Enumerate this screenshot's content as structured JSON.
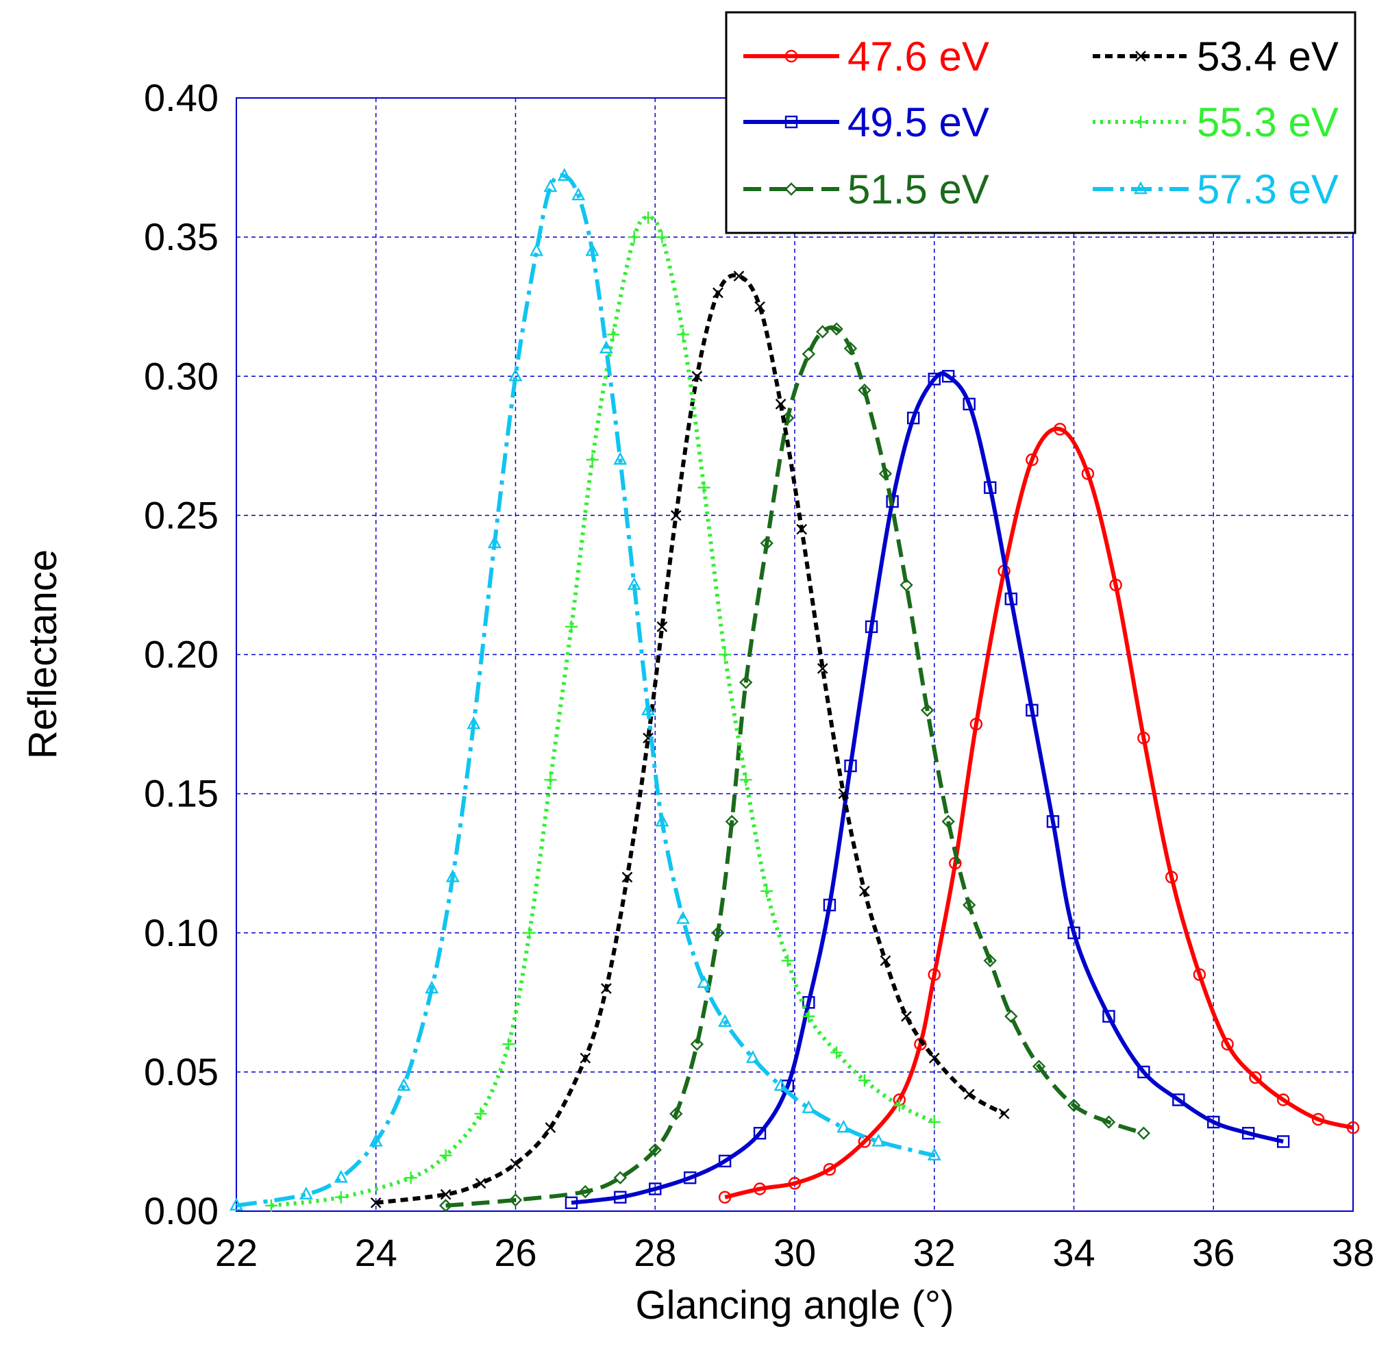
{
  "chart_data": {
    "type": "line",
    "title": "",
    "xlabel": "Glancing angle (°)",
    "ylabel": "Reflectance",
    "xlim": [
      22,
      38
    ],
    "ylim": [
      0,
      0.4
    ],
    "x_ticks": [
      "22",
      "24",
      "26",
      "28",
      "30",
      "32",
      "34",
      "36",
      "38"
    ],
    "y_ticks": [
      "0.00",
      "0.05",
      "0.10",
      "0.15",
      "0.20",
      "0.25",
      "0.30",
      "0.35",
      "0.40"
    ],
    "grid": true,
    "legend_position": "top-right",
    "series": [
      {
        "name": "47.6 eV",
        "color": "#ff0000",
        "marker": "circle",
        "line_style": "solid",
        "x": [
          29.0,
          29.5,
          30.0,
          30.5,
          31.0,
          31.5,
          31.8,
          32.0,
          32.3,
          32.6,
          33.0,
          33.4,
          33.8,
          34.2,
          34.6,
          35.0,
          35.4,
          35.8,
          36.2,
          36.6,
          37.0,
          37.5,
          38.0
        ],
        "y": [
          0.005,
          0.008,
          0.01,
          0.015,
          0.025,
          0.04,
          0.06,
          0.085,
          0.125,
          0.175,
          0.23,
          0.27,
          0.281,
          0.265,
          0.225,
          0.17,
          0.12,
          0.085,
          0.06,
          0.048,
          0.04,
          0.033,
          0.03
        ]
      },
      {
        "name": "49.5 eV",
        "color": "#0000cc",
        "marker": "square",
        "line_style": "solid",
        "x": [
          26.8,
          27.5,
          28.0,
          28.5,
          29.0,
          29.5,
          29.9,
          30.2,
          30.5,
          30.8,
          31.1,
          31.4,
          31.7,
          32.0,
          32.2,
          32.5,
          32.8,
          33.1,
          33.4,
          33.7,
          34.0,
          34.5,
          35.0,
          35.5,
          36.0,
          36.5,
          37.0
        ],
        "y": [
          0.003,
          0.005,
          0.008,
          0.012,
          0.018,
          0.028,
          0.045,
          0.075,
          0.11,
          0.16,
          0.21,
          0.255,
          0.285,
          0.299,
          0.3,
          0.29,
          0.26,
          0.22,
          0.18,
          0.14,
          0.1,
          0.07,
          0.05,
          0.04,
          0.032,
          0.028,
          0.025
        ]
      },
      {
        "name": "51.5 eV",
        "color": "#1a6a1a",
        "marker": "diamond",
        "line_style": "long-dash",
        "x": [
          25.0,
          26.0,
          27.0,
          27.5,
          28.0,
          28.3,
          28.6,
          28.9,
          29.1,
          29.3,
          29.6,
          29.9,
          30.2,
          30.4,
          30.6,
          30.8,
          31.0,
          31.3,
          31.6,
          31.9,
          32.2,
          32.5,
          32.8,
          33.1,
          33.5,
          34.0,
          34.5,
          35.0
        ],
        "y": [
          0.002,
          0.004,
          0.007,
          0.012,
          0.022,
          0.035,
          0.06,
          0.1,
          0.14,
          0.19,
          0.24,
          0.285,
          0.308,
          0.316,
          0.317,
          0.31,
          0.295,
          0.265,
          0.225,
          0.18,
          0.14,
          0.11,
          0.09,
          0.07,
          0.052,
          0.038,
          0.032,
          0.028
        ]
      },
      {
        "name": "53.4 eV",
        "color": "#000000",
        "marker": "x",
        "line_style": "short-dash",
        "x": [
          24.0,
          25.0,
          25.5,
          26.0,
          26.5,
          27.0,
          27.3,
          27.6,
          27.9,
          28.1,
          28.3,
          28.6,
          28.9,
          29.2,
          29.5,
          29.8,
          30.1,
          30.4,
          30.7,
          31.0,
          31.3,
          31.6,
          32.0,
          32.5,
          33.0
        ],
        "y": [
          0.003,
          0.006,
          0.01,
          0.017,
          0.03,
          0.055,
          0.08,
          0.12,
          0.17,
          0.21,
          0.25,
          0.3,
          0.33,
          0.336,
          0.325,
          0.29,
          0.245,
          0.195,
          0.15,
          0.115,
          0.09,
          0.07,
          0.055,
          0.042,
          0.035
        ]
      },
      {
        "name": "55.3 eV",
        "color": "#33ee33",
        "marker": "plus",
        "line_style": "dotted",
        "x": [
          22.5,
          23.5,
          24.5,
          25.0,
          25.5,
          25.9,
          26.2,
          26.5,
          26.8,
          27.1,
          27.4,
          27.7,
          27.9,
          28.1,
          28.4,
          28.7,
          29.0,
          29.3,
          29.6,
          29.9,
          30.2,
          30.6,
          31.0,
          31.5,
          32.0
        ],
        "y": [
          0.002,
          0.005,
          0.012,
          0.02,
          0.035,
          0.06,
          0.1,
          0.155,
          0.21,
          0.27,
          0.315,
          0.35,
          0.357,
          0.35,
          0.315,
          0.26,
          0.2,
          0.155,
          0.115,
          0.09,
          0.07,
          0.057,
          0.047,
          0.038,
          0.032
        ]
      },
      {
        "name": "57.3 eV",
        "color": "#11c4f0",
        "marker": "triangle",
        "line_style": "dash-dot",
        "x": [
          22.0,
          23.0,
          23.5,
          24.0,
          24.4,
          24.8,
          25.1,
          25.4,
          25.7,
          26.0,
          26.3,
          26.5,
          26.7,
          26.9,
          27.1,
          27.3,
          27.5,
          27.7,
          27.9,
          28.1,
          28.4,
          28.7,
          29.0,
          29.4,
          29.8,
          30.2,
          30.7,
          31.2,
          32.0
        ],
        "y": [
          0.002,
          0.006,
          0.012,
          0.025,
          0.045,
          0.08,
          0.12,
          0.175,
          0.24,
          0.3,
          0.345,
          0.368,
          0.372,
          0.365,
          0.345,
          0.31,
          0.27,
          0.225,
          0.18,
          0.14,
          0.105,
          0.082,
          0.068,
          0.055,
          0.045,
          0.037,
          0.03,
          0.025,
          0.02
        ]
      }
    ]
  }
}
